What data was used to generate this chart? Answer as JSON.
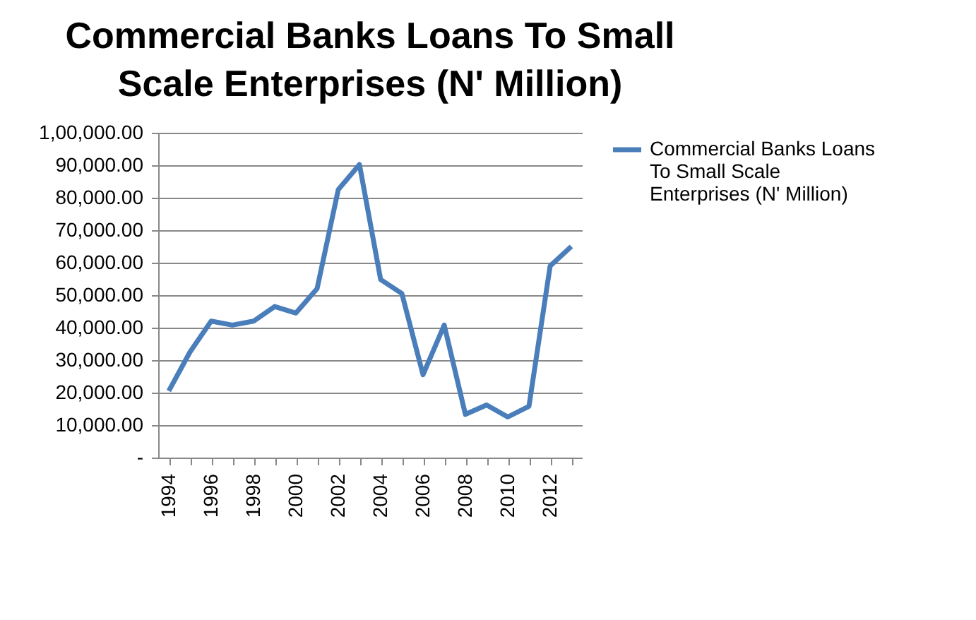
{
  "chart_data": {
    "type": "line",
    "title": "Commercial Banks Loans  To Small Scale  Enterprises (N' Million)",
    "categories": [
      "1994",
      null,
      "1996",
      null,
      "1998",
      null,
      "2000",
      null,
      "2002",
      null,
      "2004",
      null,
      "2006",
      null,
      "2008",
      null,
      "2010",
      null,
      "2012",
      null
    ],
    "series": [
      {
        "name": "Commercial Banks Loans To Small Scale Enterprises (N' Million)",
        "color": "#4a7ebb",
        "values": [
          20500,
          32500,
          42000,
          40800,
          42000,
          46500,
          44500,
          52000,
          82500,
          90200,
          54800,
          50500,
          25500,
          40800,
          13300,
          16200,
          12500,
          15800,
          59000,
          65000
        ]
      }
    ],
    "ylim": [
      0,
      100000
    ],
    "yticks": [
      {
        "value": 0,
        "label": "-"
      },
      {
        "value": 10000,
        "label": "10,000.00"
      },
      {
        "value": 20000,
        "label": "20,000.00"
      },
      {
        "value": 30000,
        "label": "30,000.00"
      },
      {
        "value": 40000,
        "label": "40,000.00"
      },
      {
        "value": 50000,
        "label": "50,000.00"
      },
      {
        "value": 60000,
        "label": "60,000.00"
      },
      {
        "value": 70000,
        "label": "70,000.00"
      },
      {
        "value": 80000,
        "label": "80,000.00"
      },
      {
        "value": 90000,
        "label": "90,000.00"
      },
      {
        "value": 100000,
        "label": "1,00,000.00"
      }
    ],
    "grid": "y",
    "legend": "right",
    "marker": "none",
    "line_style": "solid"
  }
}
